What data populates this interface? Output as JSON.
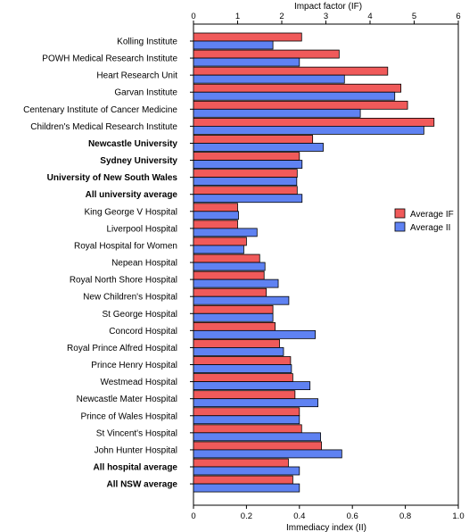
{
  "chart_data": {
    "type": "bar",
    "orientation": "horizontal",
    "title": "",
    "x_top_label": "Impact factor (IF)",
    "x_bottom_label": "Immediacy index (II)",
    "x_top_range": [
      0,
      6
    ],
    "x_top_ticks": [
      "0",
      "1",
      "2",
      "3",
      "4",
      "5",
      "6"
    ],
    "x_bottom_range": [
      0,
      1.0
    ],
    "x_bottom_ticks": [
      "0",
      "0.2",
      "0.4",
      "0.6",
      "0.8",
      "1.0"
    ],
    "legend_position": "right",
    "grid": false,
    "categories": [
      {
        "label": "Kolling Institute",
        "bold": false
      },
      {
        "label": "POWH Medical Research Institute",
        "bold": false
      },
      {
        "label": "Heart Research Unit",
        "bold": false
      },
      {
        "label": "Garvan Institute",
        "bold": false
      },
      {
        "label": "Centenary Institute of Cancer Medicine",
        "bold": false
      },
      {
        "label": "Children's Medical Research Institute",
        "bold": false
      },
      {
        "label": "Newcastle University",
        "bold": true
      },
      {
        "label": "Sydney University",
        "bold": true
      },
      {
        "label": "University of New South Wales",
        "bold": true
      },
      {
        "label": "All university average",
        "bold": true
      },
      {
        "label": "King George V Hospital",
        "bold": false
      },
      {
        "label": "Liverpool Hospital",
        "bold": false
      },
      {
        "label": "Royal Hospital for Women",
        "bold": false
      },
      {
        "label": "Nepean Hospital",
        "bold": false
      },
      {
        "label": "Royal North Shore Hospital",
        "bold": false
      },
      {
        "label": "New Children's Hospital",
        "bold": false
      },
      {
        "label": "St George Hospital",
        "bold": false
      },
      {
        "label": "Concord Hospital",
        "bold": false
      },
      {
        "label": "Royal Prince Alfred Hospital",
        "bold": false
      },
      {
        "label": "Prince Henry Hospital",
        "bold": false
      },
      {
        "label": "Westmead Hospital",
        "bold": false
      },
      {
        "label": "Newcastle Mater Hospital",
        "bold": false
      },
      {
        "label": "Prince of Wales Hospital",
        "bold": false
      },
      {
        "label": "St Vincent's Hospital",
        "bold": false
      },
      {
        "label": "John Hunter Hospital",
        "bold": false
      },
      {
        "label": "All hospital average",
        "bold": true
      },
      {
        "label": "All NSW average",
        "bold": true
      }
    ],
    "series": [
      {
        "name": "Average IF",
        "axis": "top",
        "color": "#f05a5a",
        "values": [
          2.45,
          3.3,
          4.4,
          4.7,
          4.85,
          5.45,
          2.7,
          2.4,
          2.35,
          2.35,
          1.0,
          1.0,
          1.2,
          1.5,
          1.6,
          1.65,
          1.8,
          1.85,
          1.95,
          2.2,
          2.25,
          2.3,
          2.4,
          2.45,
          2.9,
          2.15,
          2.25
        ]
      },
      {
        "name": "Average II",
        "axis": "bottom",
        "color": "#5f82f2",
        "values": [
          0.3,
          0.4,
          0.57,
          0.76,
          0.63,
          0.87,
          0.49,
          0.41,
          0.39,
          0.41,
          0.17,
          0.24,
          0.19,
          0.27,
          0.32,
          0.36,
          0.3,
          0.46,
          0.34,
          0.37,
          0.44,
          0.47,
          0.4,
          0.48,
          0.56,
          0.4,
          0.4
        ]
      }
    ]
  }
}
